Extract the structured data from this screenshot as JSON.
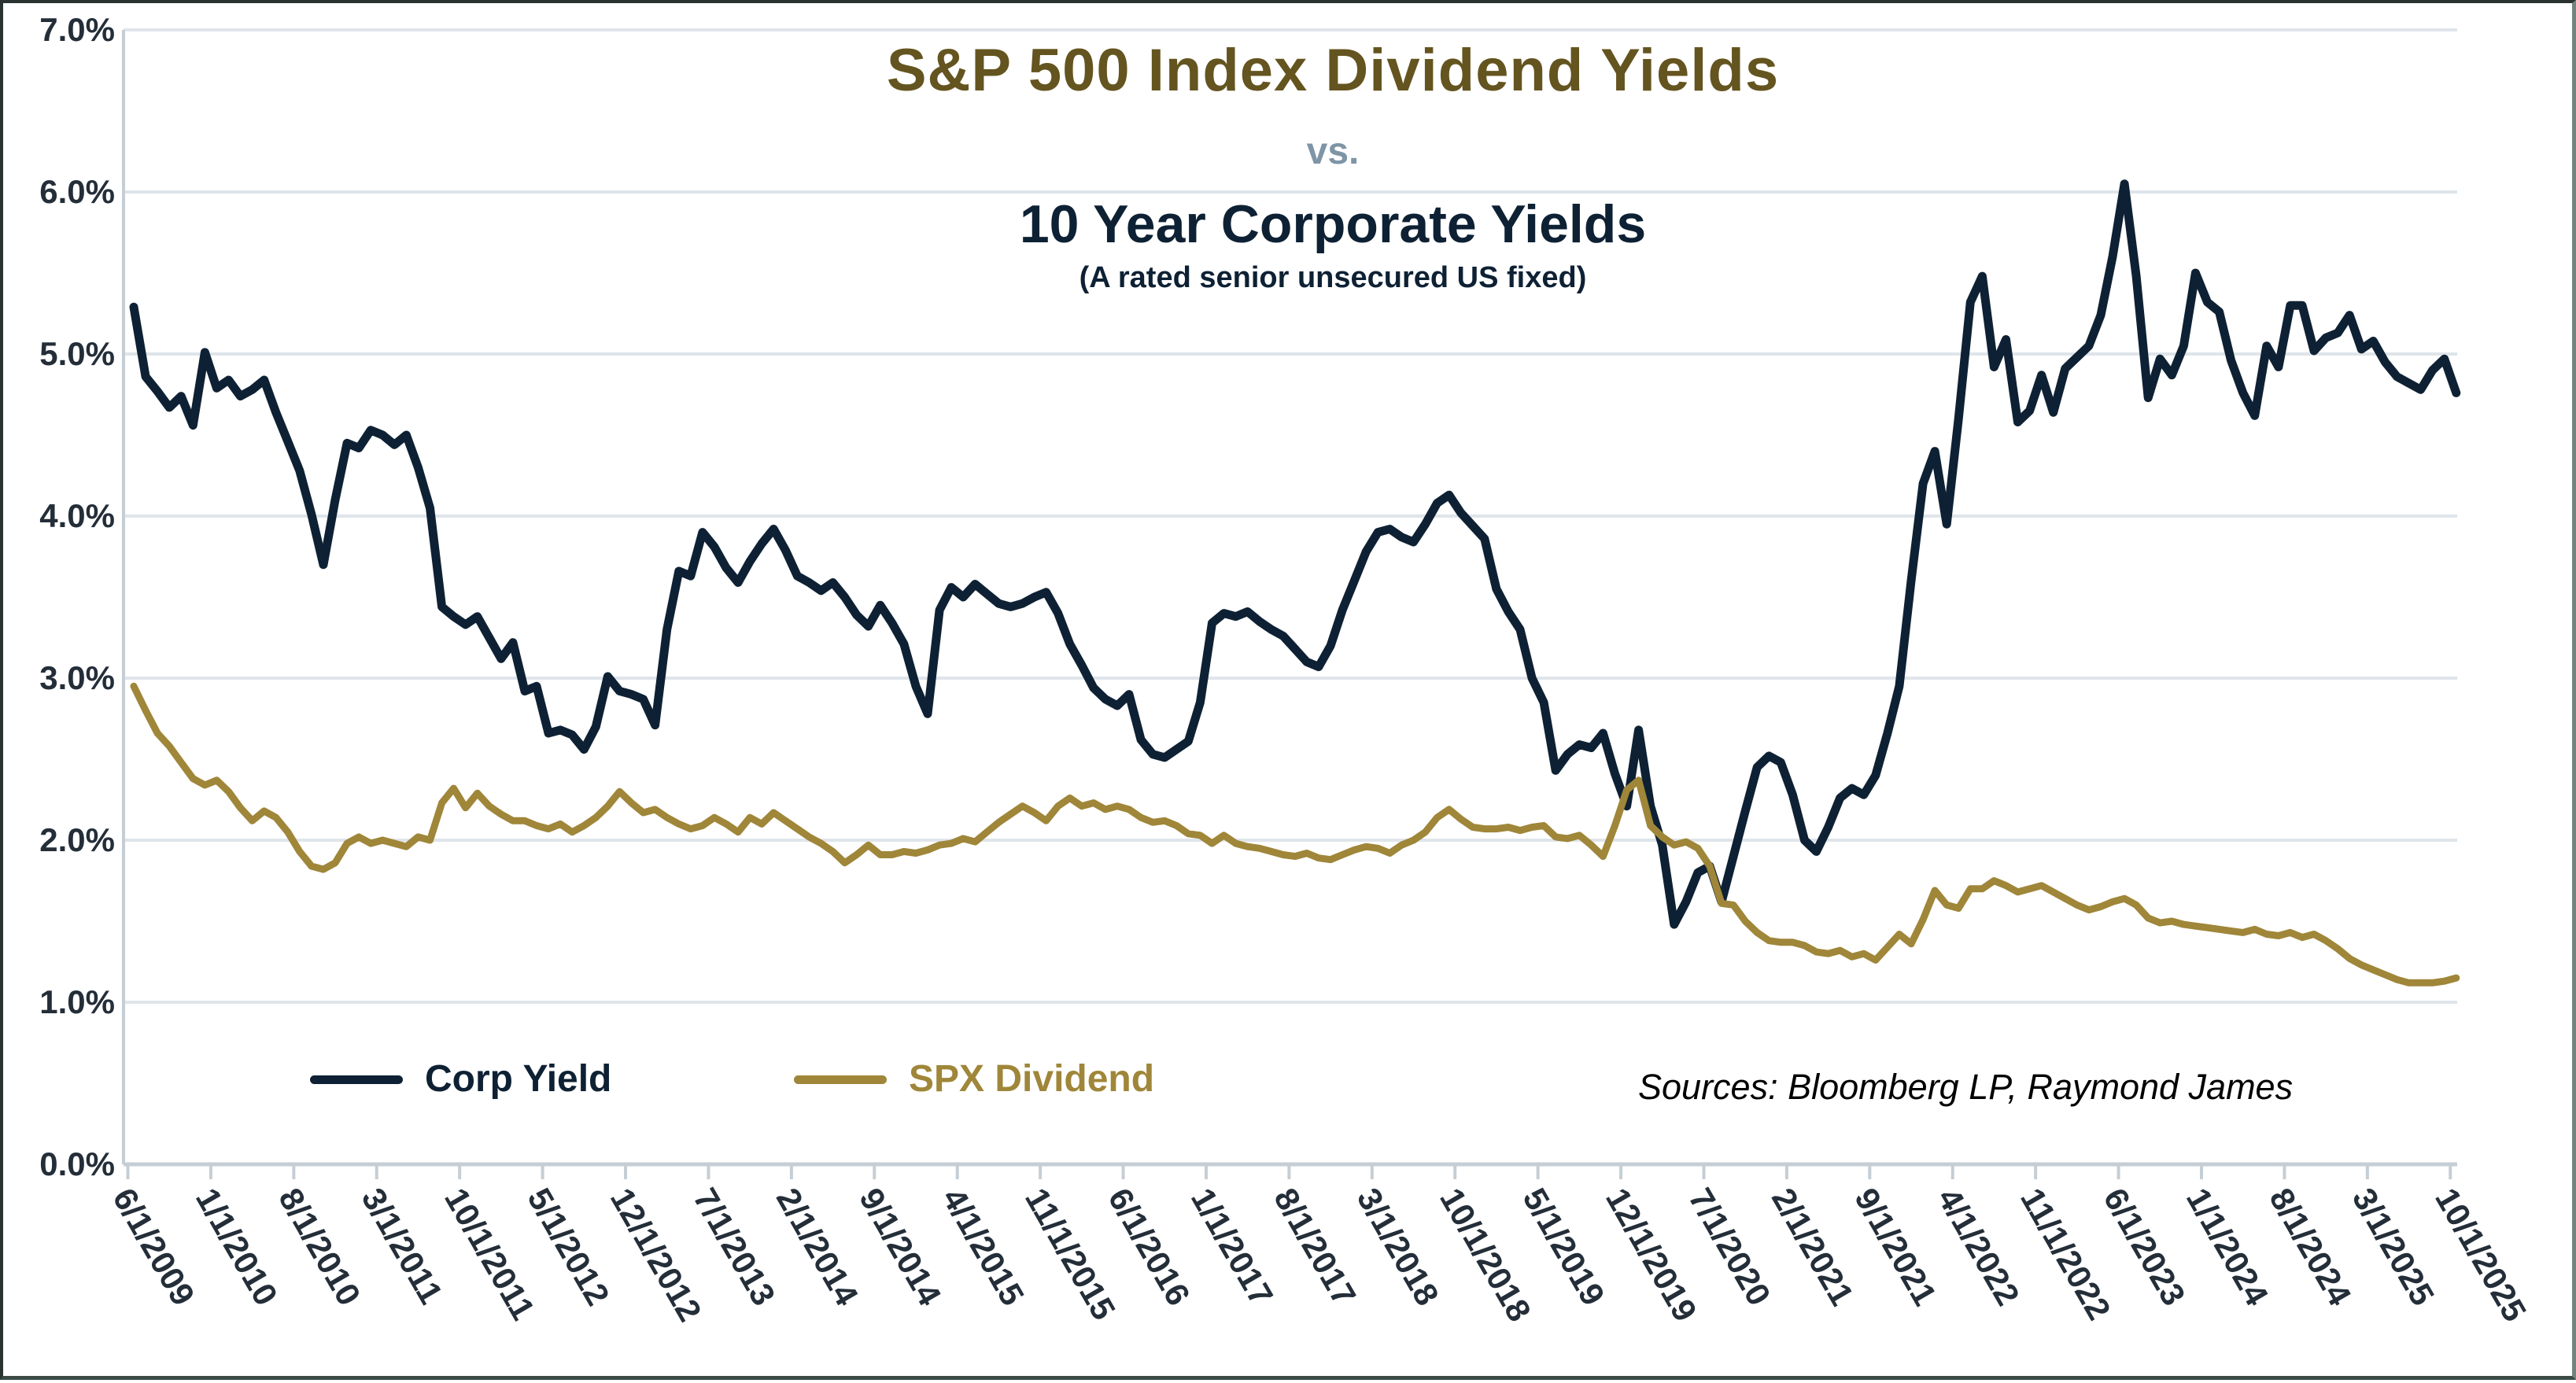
{
  "title": {
    "line1": "S&P 500 Index Dividend Yields",
    "vs": "vs.",
    "line2": "10 Year Corporate Yields",
    "subtitle": "(A rated senior unsecured US fixed)"
  },
  "source_note": "Sources: Bloomberg LP, Raymond James",
  "colors": {
    "corp_line": "#0e2134",
    "spx_line": "#9f8639",
    "gridline": "#dfe5ea",
    "axis": "#c5ced5",
    "axis_text": "#242e39"
  },
  "legend": [
    {
      "label": "Corp Yield",
      "color": "#0e2134"
    },
    {
      "label": "SPX Dividend",
      "color": "#9f8639"
    }
  ],
  "chart_data": {
    "type": "line",
    "title": "S&P 500 Index Dividend Yields vs. 10 Year Corporate Yields",
    "ylabel": "",
    "xlabel": "",
    "ylim": [
      0,
      7
    ],
    "y_tick_labels": [
      "7.0%",
      "6.0%",
      "5.0%",
      "4.0%",
      "3.0%",
      "2.0%",
      "1.0%",
      "0.0%"
    ],
    "grid": true,
    "legend_position": "bottom",
    "x_label_every": 7,
    "x_labels": [
      "6/1/2009",
      "1/1/2010",
      "8/1/2010",
      "3/1/2011",
      "10/1/2011",
      "5/1/2012",
      "12/1/2012",
      "7/1/2013",
      "2/1/2014",
      "9/1/2014",
      "4/1/2015",
      "11/1/2015",
      "6/1/2016",
      "1/1/2017",
      "8/1/2017",
      "3/1/2018",
      "10/1/2018",
      "5/1/2019",
      "12/1/2019",
      "7/1/2020",
      "2/1/2021",
      "9/1/2021",
      "4/1/2022",
      "11/1/2022",
      "6/1/2023",
      "1/1/2024",
      "8/1/2024",
      "3/1/2025",
      "10/1/2025"
    ],
    "x_start_month": "6/2009",
    "x_end_month": "10/2025",
    "points_per_month": 1,
    "series": [
      {
        "name": "Corp Yield",
        "color": "#0e2134",
        "width": 11,
        "values": [
          5.29,
          4.86,
          4.77,
          4.67,
          4.74,
          4.56,
          5.01,
          4.79,
          4.84,
          4.74,
          4.78,
          4.84,
          4.64,
          4.46,
          4.28,
          4.01,
          3.7,
          4.1,
          4.45,
          4.42,
          4.53,
          4.5,
          4.44,
          4.5,
          4.3,
          4.05,
          3.44,
          3.38,
          3.33,
          3.38,
          3.25,
          3.12,
          3.22,
          2.92,
          2.95,
          2.66,
          2.68,
          2.65,
          2.56,
          2.7,
          3.01,
          2.92,
          2.9,
          2.87,
          2.71,
          3.3,
          3.66,
          3.63,
          3.9,
          3.81,
          3.68,
          3.59,
          3.72,
          3.83,
          3.92,
          3.79,
          3.63,
          3.59,
          3.54,
          3.59,
          3.5,
          3.39,
          3.32,
          3.45,
          3.34,
          3.21,
          2.95,
          2.78,
          3.42,
          3.56,
          3.5,
          3.58,
          3.52,
          3.46,
          3.44,
          3.46,
          3.5,
          3.53,
          3.4,
          3.21,
          3.08,
          2.94,
          2.87,
          2.83,
          2.9,
          2.62,
          2.53,
          2.51,
          2.56,
          2.61,
          2.85,
          3.34,
          3.4,
          3.38,
          3.41,
          3.35,
          3.3,
          3.26,
          3.18,
          3.1,
          3.07,
          3.2,
          3.42,
          3.6,
          3.78,
          3.9,
          3.92,
          3.87,
          3.84,
          3.95,
          4.08,
          4.13,
          4.02,
          3.94,
          3.86,
          3.55,
          3.41,
          3.3,
          3.0,
          2.85,
          2.43,
          2.53,
          2.59,
          2.57,
          2.66,
          2.41,
          2.21,
          2.68,
          2.21,
          1.97,
          1.48,
          1.62,
          1.8,
          1.84,
          1.62,
          1.9,
          2.18,
          2.45,
          2.52,
          2.48,
          2.28,
          2.0,
          1.93,
          2.08,
          2.26,
          2.32,
          2.28,
          2.4,
          2.66,
          2.95,
          3.6,
          4.2,
          4.4,
          3.95,
          4.6,
          5.32,
          5.48,
          4.92,
          5.09,
          4.58,
          4.65,
          4.87,
          4.64,
          4.91,
          4.98,
          5.05,
          5.24,
          5.6,
          6.05,
          5.48,
          4.73,
          4.97,
          4.87,
          5.05,
          5.5,
          5.32,
          5.26,
          4.96,
          4.76,
          4.62,
          5.05,
          4.92,
          5.3,
          5.3,
          5.02,
          5.1,
          5.13,
          5.24,
          5.03,
          5.08,
          4.95,
          4.86,
          4.82,
          4.78,
          4.9,
          4.97,
          4.76
        ]
      },
      {
        "name": "SPX Dividend",
        "color": "#9f8639",
        "width": 9,
        "values": [
          2.95,
          2.8,
          2.66,
          2.58,
          2.48,
          2.38,
          2.34,
          2.37,
          2.3,
          2.2,
          2.12,
          2.18,
          2.14,
          2.05,
          1.93,
          1.84,
          1.82,
          1.86,
          1.98,
          2.02,
          1.98,
          2.0,
          1.98,
          1.96,
          2.02,
          2.0,
          2.23,
          2.32,
          2.2,
          2.29,
          2.21,
          2.16,
          2.12,
          2.12,
          2.09,
          2.07,
          2.1,
          2.05,
          2.09,
          2.14,
          2.21,
          2.3,
          2.23,
          2.17,
          2.19,
          2.14,
          2.1,
          2.07,
          2.09,
          2.14,
          2.1,
          2.05,
          2.14,
          2.1,
          2.17,
          2.12,
          2.07,
          2.02,
          1.98,
          1.93,
          1.86,
          1.91,
          1.97,
          1.91,
          1.91,
          1.93,
          1.92,
          1.94,
          1.97,
          1.98,
          2.01,
          1.99,
          2.05,
          2.11,
          2.16,
          2.21,
          2.17,
          2.12,
          2.21,
          2.26,
          2.21,
          2.23,
          2.19,
          2.21,
          2.19,
          2.14,
          2.11,
          2.12,
          2.09,
          2.04,
          2.03,
          1.98,
          2.03,
          1.98,
          1.96,
          1.95,
          1.93,
          1.91,
          1.9,
          1.92,
          1.89,
          1.88,
          1.91,
          1.94,
          1.96,
          1.95,
          1.92,
          1.97,
          2.0,
          2.05,
          2.14,
          2.19,
          2.13,
          2.08,
          2.07,
          2.07,
          2.08,
          2.06,
          2.08,
          2.09,
          2.02,
          2.01,
          2.03,
          1.97,
          1.9,
          2.09,
          2.31,
          2.37,
          2.09,
          2.02,
          1.97,
          1.99,
          1.95,
          1.84,
          1.61,
          1.6,
          1.5,
          1.43,
          1.38,
          1.37,
          1.37,
          1.35,
          1.31,
          1.3,
          1.32,
          1.28,
          1.3,
          1.26,
          1.34,
          1.42,
          1.36,
          1.51,
          1.69,
          1.6,
          1.58,
          1.7,
          1.7,
          1.75,
          1.72,
          1.68,
          1.7,
          1.72,
          1.68,
          1.64,
          1.6,
          1.57,
          1.59,
          1.62,
          1.64,
          1.6,
          1.52,
          1.49,
          1.5,
          1.48,
          1.47,
          1.46,
          1.45,
          1.44,
          1.43,
          1.45,
          1.42,
          1.41,
          1.43,
          1.4,
          1.42,
          1.38,
          1.33,
          1.27,
          1.23,
          1.2,
          1.17,
          1.14,
          1.12,
          1.12,
          1.12,
          1.13,
          1.15
        ]
      }
    ]
  }
}
